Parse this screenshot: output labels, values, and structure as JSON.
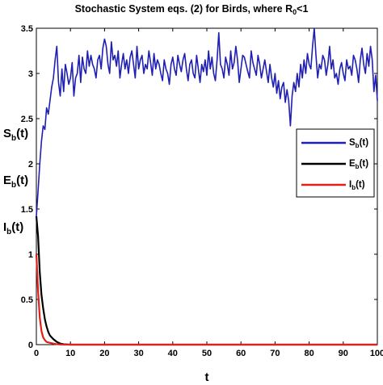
{
  "chart_data": {
    "type": "line",
    "title": {
      "main": "Stochastic System eqs. (2) for Birds, where R",
      "sub": "0",
      "tail": "<1"
    },
    "xlabel": "t",
    "ylabel_parts": [
      {
        "main": "S",
        "sub": "b",
        "tail": "(t)"
      },
      {
        "main": "E",
        "sub": "b",
        "tail": "(t)"
      },
      {
        "main": "I",
        "sub": "b",
        "tail": "(t)"
      }
    ],
    "xlim": [
      0,
      100
    ],
    "ylim": [
      0,
      3.5
    ],
    "xticks": [
      "0",
      "10",
      "20",
      "30",
      "40",
      "50",
      "60",
      "70",
      "80",
      "90",
      "100"
    ],
    "yticks": [
      "0",
      "0.5",
      "1",
      "1.5",
      "2",
      "2.5",
      "3",
      "3.5"
    ],
    "grid": false,
    "legend_position": "right-middle",
    "series": [
      {
        "name": {
          "main": "S",
          "sub": "b",
          "tail": "(t)"
        },
        "color": "#1f1fb4",
        "x": [
          0,
          0.5,
          1,
          1.5,
          2,
          2.5,
          3,
          3.5,
          4,
          4.5,
          5,
          5.5,
          6,
          6.5,
          7,
          7.5,
          8,
          8.5,
          9,
          9.5,
          10,
          10.5,
          11,
          11.5,
          12,
          12.5,
          13,
          13.5,
          14,
          14.5,
          15,
          15.5,
          16,
          16.5,
          17,
          17.5,
          18,
          18.5,
          19,
          19.5,
          20,
          20.5,
          21,
          21.5,
          22,
          22.5,
          23,
          23.5,
          24,
          24.5,
          25,
          25.5,
          26,
          26.5,
          27,
          27.5,
          28,
          28.5,
          29,
          29.5,
          30,
          30.5,
          31,
          31.5,
          32,
          32.5,
          33,
          33.5,
          34,
          34.5,
          35,
          35.5,
          36,
          36.5,
          37,
          37.5,
          38,
          38.5,
          39,
          39.5,
          40,
          40.5,
          41,
          41.5,
          42,
          42.5,
          43,
          43.5,
          44,
          44.5,
          45,
          45.5,
          46,
          46.5,
          47,
          47.5,
          48,
          48.5,
          49,
          49.5,
          50,
          50.5,
          51,
          51.5,
          52,
          52.5,
          53,
          53.5,
          54,
          54.5,
          55,
          55.5,
          56,
          56.5,
          57,
          57.5,
          58,
          58.5,
          59,
          59.5,
          60,
          60.5,
          61,
          61.5,
          62,
          62.5,
          63,
          63.5,
          64,
          64.5,
          65,
          65.5,
          66,
          66.5,
          67,
          67.5,
          68,
          68.5,
          69,
          69.5,
          70,
          70.5,
          71,
          71.5,
          72,
          72.5,
          73,
          73.5,
          74,
          74.5,
          75,
          75.5,
          76,
          76.5,
          77,
          77.5,
          78,
          78.5,
          79,
          79.5,
          80,
          80.5,
          81,
          81.5,
          82,
          82.5,
          83,
          83.5,
          84,
          84.5,
          85,
          85.5,
          86,
          86.5,
          87,
          87.5,
          88,
          88.5,
          89,
          89.5,
          90,
          90.5,
          91,
          91.5,
          92,
          92.5,
          93,
          93.5,
          94,
          94.5,
          95,
          95.5,
          96,
          96.5,
          97,
          97.5,
          98,
          98.5,
          99,
          99.5,
          100
        ],
        "y": [
          1.42,
          1.7,
          2.0,
          2.25,
          2.42,
          2.38,
          2.62,
          2.55,
          2.7,
          2.85,
          2.95,
          3.15,
          3.3,
          2.9,
          2.75,
          3.05,
          2.8,
          3.1,
          3.0,
          2.88,
          2.95,
          3.12,
          2.75,
          2.95,
          3.0,
          3.2,
          2.9,
          3.18,
          3.05,
          3.0,
          3.25,
          3.08,
          3.2,
          3.1,
          3.05,
          2.95,
          3.15,
          3.2,
          3.05,
          3.28,
          3.38,
          3.3,
          3.1,
          3.0,
          3.35,
          3.15,
          3.2,
          3.08,
          3.25,
          2.95,
          3.1,
          3.22,
          3.05,
          3.15,
          3.0,
          3.18,
          3.25,
          3.1,
          2.95,
          3.3,
          3.05,
          3.15,
          3.2,
          3.0,
          3.1,
          3.05,
          3.25,
          3.12,
          2.98,
          3.22,
          3.05,
          3.15,
          3.1,
          3.0,
          2.92,
          3.15,
          3.05,
          3.0,
          2.88,
          3.1,
          3.18,
          3.05,
          2.98,
          3.2,
          3.1,
          3.02,
          3.15,
          3.22,
          3.05,
          2.92,
          3.1,
          3.15,
          3.0,
          2.95,
          3.2,
          3.05,
          2.9,
          3.1,
          3.02,
          3.15,
          2.98,
          3.25,
          3.05,
          3.18,
          3.0,
          2.92,
          3.15,
          3.45,
          3.1,
          3.05,
          2.95,
          3.18,
          3.1,
          2.98,
          3.25,
          3.05,
          3.12,
          3.3,
          3.15,
          2.9,
          3.05,
          3.2,
          3.18,
          3.1,
          3.02,
          2.95,
          3.25,
          3.12,
          3.05,
          2.98,
          3.2,
          3.1,
          2.95,
          3.05,
          3.15,
          3.02,
          2.9,
          3.1,
          2.95,
          2.85,
          3.0,
          2.78,
          2.92,
          2.72,
          2.85,
          2.9,
          2.68,
          2.82,
          2.7,
          2.42,
          2.75,
          2.9,
          2.8,
          3.0,
          2.85,
          3.1,
          2.95,
          3.15,
          3.0,
          3.22,
          3.1,
          3.05,
          3.3,
          3.5,
          3.2,
          2.95,
          3.1,
          3.05,
          3.2,
          3.15,
          2.98,
          3.1,
          3.3,
          3.05,
          3.15,
          2.95,
          3.0,
          2.88,
          3.05,
          3.12,
          3.0,
          2.92,
          3.15,
          3.05,
          3.08,
          2.98,
          3.2,
          3.15,
          3.05,
          2.9,
          3.15,
          3.28,
          3.1,
          3.0,
          3.22,
          3.08,
          3.3,
          3.15,
          2.8,
          2.98,
          2.7
        ]
      },
      {
        "name": {
          "main": "E",
          "sub": "b",
          "tail": "(t)"
        },
        "color": "#000000",
        "x": [
          0,
          0.5,
          1,
          1.5,
          2,
          2.5,
          3,
          3.5,
          4,
          5,
          6,
          7,
          8,
          9,
          10,
          15,
          20,
          30,
          40,
          50,
          60,
          70,
          80,
          90,
          100
        ],
        "y": [
          1.42,
          1.2,
          0.8,
          0.55,
          0.4,
          0.28,
          0.2,
          0.14,
          0.1,
          0.06,
          0.03,
          0.012,
          0.005,
          0.002,
          0,
          0,
          0,
          0,
          0,
          0,
          0,
          0,
          0,
          0,
          0
        ]
      },
      {
        "name": {
          "main": "I",
          "sub": "b",
          "tail": "(t)"
        },
        "color": "#e0201a",
        "x": [
          0,
          0.5,
          1,
          1.5,
          2,
          2.5,
          3,
          4,
          5,
          6,
          7,
          8,
          10,
          15,
          20,
          30,
          40,
          50,
          60,
          70,
          80,
          90,
          100
        ],
        "y": [
          1.0,
          0.6,
          0.3,
          0.15,
          0.08,
          0.05,
          0.03,
          0.02,
          0.012,
          0.005,
          0.002,
          0.001,
          0,
          0,
          0,
          0,
          0,
          0,
          0,
          0,
          0,
          0,
          0
        ]
      }
    ]
  }
}
